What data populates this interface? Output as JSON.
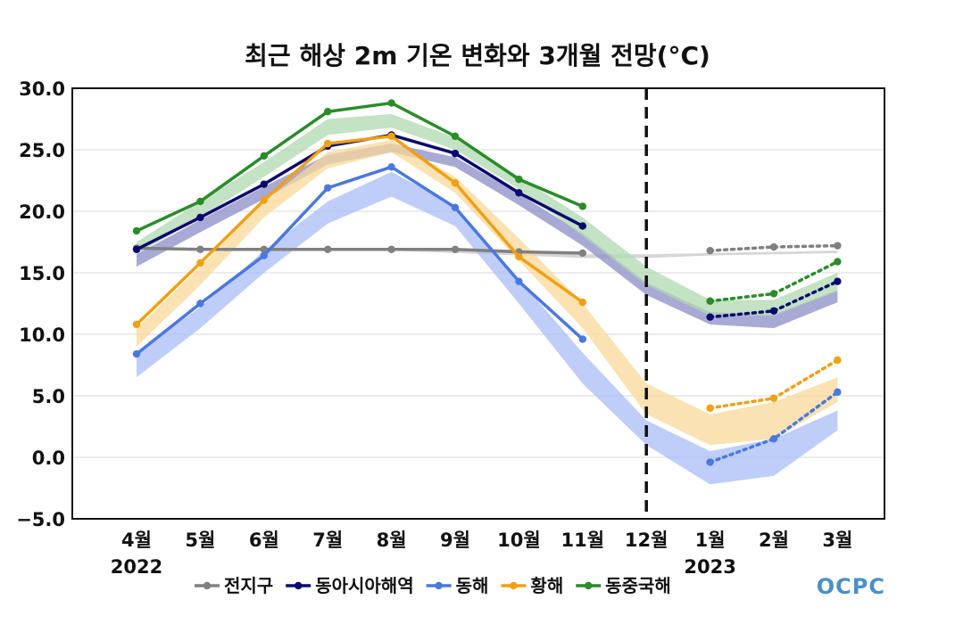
{
  "chart_data": {
    "type": "line",
    "title": "최근 해상 2m 기온 변화와 3개월 전망(°C)",
    "categories": [
      "4월",
      "5월",
      "6월",
      "7월",
      "8월",
      "9월",
      "10월",
      "11월",
      "12월",
      "1월",
      "2월",
      "3월"
    ],
    "year_labels": [
      {
        "index": 0,
        "label": "2022"
      },
      {
        "index": 9,
        "label": "2023"
      }
    ],
    "ylim": [
      -5,
      30
    ],
    "yticks": [
      -5,
      0,
      5,
      10,
      15,
      20,
      25,
      30
    ],
    "ytick_labels": [
      "−5.0",
      "0.0",
      "5.0",
      "10.0",
      "15.0",
      "20.0",
      "25.0",
      "30.0"
    ],
    "grid": true,
    "forecast_start_index": 8,
    "legend_position": "bottom",
    "series": [
      {
        "name": "전지구",
        "color": "#808080",
        "band_color": "#c8c8c8",
        "observed": [
          17.0,
          16.9,
          16.9,
          16.9,
          16.9,
          16.9,
          16.7,
          16.6
        ],
        "forecast": {
          "x": [
            9,
            10,
            11
          ],
          "values": [
            16.8,
            17.1,
            17.2
          ]
        },
        "band_lower": [
          16.9,
          16.9,
          16.9,
          16.9,
          16.8,
          16.6,
          16.4,
          16.2,
          16.2,
          16.4,
          16.5,
          16.6
        ],
        "band_upper": [
          17.1,
          17.0,
          17.0,
          17.0,
          17.0,
          16.9,
          16.7,
          16.5,
          16.5,
          16.6,
          16.7,
          16.8
        ]
      },
      {
        "name": "동아시아해역",
        "color": "#0a0a6e",
        "band_color": "#8c8cc8",
        "observed": [
          16.9,
          19.5,
          22.2,
          25.3,
          26.2,
          24.7,
          21.5,
          18.8
        ],
        "forecast": {
          "x": [
            9,
            10,
            11
          ],
          "values": [
            11.4,
            11.9,
            14.3
          ]
        },
        "band_lower": [
          15.5,
          18.3,
          21.0,
          23.8,
          24.8,
          23.6,
          20.5,
          17.2,
          13.2,
          10.8,
          10.5,
          12.6
        ],
        "band_upper": [
          16.5,
          19.3,
          22.0,
          24.6,
          25.5,
          24.4,
          21.4,
          18.2,
          14.2,
          11.8,
          11.6,
          13.6
        ]
      },
      {
        "name": "동해",
        "color": "#4a78e0",
        "band_color": "#a8bef5",
        "observed": [
          8.4,
          12.5,
          16.4,
          21.9,
          23.6,
          20.3,
          14.3,
          9.6
        ],
        "forecast": {
          "x": [
            9,
            10,
            11
          ],
          "values": [
            -0.4,
            1.5,
            5.3
          ]
        },
        "band_lower": [
          6.5,
          10.5,
          15.0,
          19.0,
          21.2,
          18.8,
          12.5,
          6.0,
          1.0,
          -2.2,
          -1.5,
          2.2
        ],
        "band_upper": [
          8.5,
          12.2,
          16.8,
          20.8,
          23.2,
          20.5,
          14.5,
          8.5,
          3.0,
          0.5,
          1.5,
          3.8
        ]
      },
      {
        "name": "황해",
        "color": "#f0a010",
        "band_color": "#f8d898",
        "observed": [
          10.8,
          15.8,
          20.9,
          25.5,
          26.1,
          22.3,
          16.3,
          12.6
        ],
        "forecast": {
          "x": [
            9,
            10,
            11
          ],
          "values": [
            4.0,
            4.8,
            7.9
          ]
        },
        "band_lower": [
          9.0,
          14.0,
          19.5,
          23.5,
          24.8,
          21.5,
          16.0,
          10.5,
          3.5,
          1.0,
          1.5,
          4.5
        ],
        "band_upper": [
          10.5,
          15.5,
          20.8,
          24.8,
          25.8,
          22.8,
          17.8,
          12.5,
          6.0,
          3.5,
          4.5,
          6.5
        ]
      },
      {
        "name": "동중국해",
        "color": "#2a8c2a",
        "band_color": "#b0d8b0",
        "observed": [
          18.4,
          20.8,
          24.5,
          28.1,
          28.8,
          26.1,
          22.6,
          20.4
        ],
        "forecast": {
          "x": [
            9,
            10,
            11
          ],
          "values": [
            12.7,
            13.3,
            15.9
          ]
        },
        "band_lower": [
          16.5,
          19.5,
          22.8,
          26.2,
          26.8,
          25.0,
          21.8,
          18.0,
          14.0,
          11.5,
          11.5,
          13.5
        ],
        "band_upper": [
          17.5,
          20.8,
          24.0,
          27.5,
          27.9,
          26.0,
          22.8,
          19.5,
          15.5,
          12.8,
          12.8,
          15.0
        ]
      }
    ]
  },
  "logo": {
    "text": "OCPC"
  }
}
